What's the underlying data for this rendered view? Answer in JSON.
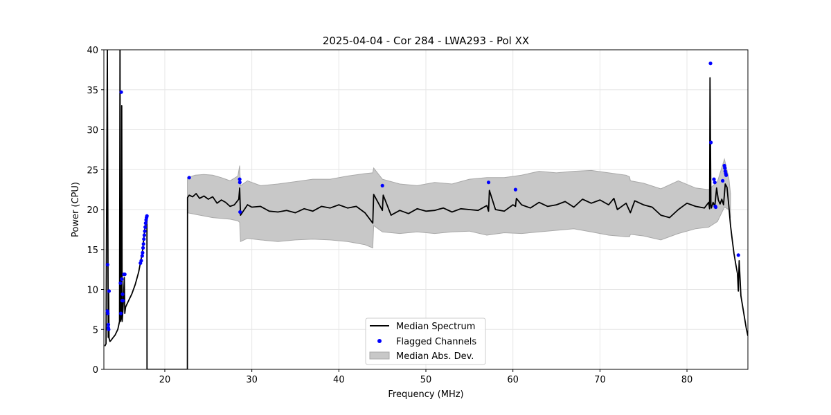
{
  "colors": {
    "median": "#000000",
    "flagged": "#0000ff",
    "mad_fill": "#c8c8c8",
    "mad_edge": "#a8a8a8",
    "grid": "#e6e6e6"
  },
  "chart_data": {
    "type": "line",
    "title": "2025-04-04 - Cor 284 - LWA293 - Pol XX",
    "xlabel": "Frequency (MHz)",
    "ylabel": "Power (CPU)",
    "xlim": [
      13,
      87
    ],
    "ylim": [
      0,
      40
    ],
    "xticks": [
      20,
      30,
      40,
      50,
      60,
      70,
      80
    ],
    "yticks": [
      0,
      5,
      10,
      15,
      20,
      25,
      30,
      35,
      40
    ],
    "grid": true,
    "legend": {
      "position": "bottom-center",
      "entries": [
        "Median Spectrum",
        "Flagged Channels",
        "Median Abs. Dev."
      ]
    },
    "series": [
      {
        "name": "Median Spectrum",
        "kind": "line",
        "x": [
          13.1,
          13.25,
          13.4,
          13.5,
          13.55,
          13.6,
          13.7,
          13.8,
          14.0,
          14.3,
          14.6,
          14.8,
          14.85,
          14.9,
          15.0,
          15.05,
          15.1,
          15.2,
          15.35,
          15.4,
          15.5,
          15.8,
          16.2,
          16.6,
          17.0,
          17.4,
          17.8,
          17.95,
          17.96,
          22.6,
          22.61,
          22.8,
          23.2,
          23.6,
          24.0,
          24.5,
          25.0,
          25.5,
          26.0,
          26.5,
          27.0,
          27.5,
          28.0,
          28.5,
          28.6,
          28.7,
          29.5,
          30.0,
          31.0,
          32.0,
          33.0,
          34.0,
          35.0,
          36.0,
          37.0,
          38.0,
          39.0,
          40.0,
          41.0,
          42.0,
          43.0,
          43.9,
          44.0,
          45.0,
          45.1,
          46.0,
          47.0,
          48.0,
          49.0,
          50.0,
          51.0,
          52.0,
          53.0,
          54.0,
          55.0,
          56.0,
          57.0,
          57.2,
          57.3,
          58.0,
          59.0,
          60.0,
          60.3,
          60.4,
          61.0,
          62.0,
          63.0,
          64.0,
          65.0,
          66.0,
          67.0,
          68.0,
          69.0,
          70.0,
          71.0,
          71.6,
          72.0,
          73.0,
          73.5,
          74.0,
          75.0,
          76.0,
          77.0,
          78.0,
          79.0,
          80.0,
          81.0,
          82.0,
          82.5,
          82.6,
          82.65,
          82.75,
          82.8,
          83.0,
          83.2,
          83.4,
          83.6,
          83.8,
          84.0,
          84.2,
          84.4,
          84.6,
          84.8,
          85.0,
          85.2,
          85.4,
          85.6,
          85.8,
          85.9,
          86.0,
          86.2,
          86.5,
          86.8,
          87.0
        ],
        "y": [
          2.9,
          3.2,
          40.0,
          4.0,
          9.5,
          3.9,
          3.5,
          3.6,
          3.9,
          4.3,
          5.0,
          6.0,
          40.0,
          6.0,
          6.5,
          33.0,
          6.0,
          7.5,
          11.5,
          7.0,
          7.8,
          8.5,
          9.4,
          10.6,
          12.2,
          14.5,
          18.5,
          18.5,
          0.0,
          0.0,
          21.5,
          21.8,
          21.6,
          22.0,
          21.4,
          21.7,
          21.3,
          21.6,
          20.8,
          21.2,
          20.9,
          20.4,
          20.6,
          21.3,
          22.7,
          19.3,
          20.6,
          20.3,
          20.4,
          19.8,
          19.7,
          19.9,
          19.6,
          20.1,
          19.8,
          20.4,
          20.2,
          20.6,
          20.2,
          20.4,
          19.6,
          18.3,
          21.9,
          19.9,
          21.8,
          19.3,
          19.9,
          19.5,
          20.1,
          19.8,
          19.9,
          20.2,
          19.7,
          20.1,
          20.0,
          19.9,
          20.5,
          19.8,
          22.4,
          20.0,
          19.8,
          20.6,
          20.4,
          21.4,
          20.6,
          20.2,
          20.9,
          20.4,
          20.6,
          21.0,
          20.3,
          21.3,
          20.8,
          21.2,
          20.6,
          21.4,
          20.0,
          20.8,
          19.6,
          21.1,
          20.6,
          20.3,
          19.3,
          19.0,
          20.0,
          20.8,
          20.4,
          20.2,
          20.9,
          20.1,
          36.5,
          20.5,
          20.2,
          20.9,
          20.4,
          22.7,
          21.2,
          20.7,
          21.3,
          20.6,
          23.2,
          22.8,
          20.5,
          18.0,
          16.2,
          14.5,
          13.2,
          12.0,
          9.8,
          13.6,
          9.2,
          7.2,
          5.2,
          4.2
        ]
      },
      {
        "name": "Flagged Channels",
        "kind": "scatter",
        "x": [
          13.4,
          13.42,
          13.45,
          13.5,
          13.52,
          13.55,
          13.6,
          14.9,
          14.95,
          15.0,
          15.05,
          15.1,
          15.15,
          15.2,
          15.3,
          15.4,
          17.2,
          17.3,
          17.4,
          17.45,
          17.5,
          17.55,
          17.6,
          17.65,
          17.7,
          17.75,
          17.8,
          17.85,
          17.9,
          17.95,
          22.8,
          28.6,
          28.62,
          28.65,
          45.0,
          57.2,
          60.3,
          82.7,
          82.75,
          83.1,
          83.2,
          83.25,
          83.3,
          84.1,
          84.3,
          84.35,
          84.4,
          84.45,
          84.5,
          85.9
        ],
        "y": [
          7.3,
          13.1,
          7.0,
          5.2,
          5.6,
          5.0,
          9.8,
          10.8,
          7.0,
          34.7,
          11.3,
          8.6,
          9.4,
          8.6,
          11.9,
          11.9,
          13.3,
          13.6,
          14.2,
          14.6,
          15.2,
          15.7,
          16.3,
          16.8,
          17.3,
          17.8,
          18.3,
          18.7,
          19.0,
          19.2,
          24.0,
          23.8,
          23.4,
          19.7,
          23.0,
          23.4,
          22.5,
          38.3,
          28.4,
          23.8,
          23.4,
          20.4,
          20.3,
          23.6,
          25.5,
          25.2,
          24.8,
          24.5,
          24.3,
          14.3
        ]
      },
      {
        "name": "Median Abs. Dev.",
        "kind": "band",
        "x": [
          22.6,
          23.5,
          24.5,
          25.5,
          26.5,
          27.5,
          28.4,
          28.6,
          28.7,
          29.5,
          31.0,
          33.0,
          35.0,
          37.0,
          39.0,
          41.0,
          43.0,
          43.9,
          44.0,
          45.0,
          47.0,
          49.0,
          51.0,
          53.0,
          55.0,
          57.0,
          59.0,
          61.0,
          63.0,
          65.0,
          67.0,
          69.0,
          71.0,
          73.0,
          73.4,
          73.5,
          75.0,
          77.0,
          79.0,
          81.0,
          82.5,
          83.5,
          84.3,
          84.8,
          85.0
        ],
        "upper": [
          24.0,
          24.3,
          24.4,
          24.3,
          24.0,
          23.6,
          24.2,
          25.5,
          23.0,
          23.6,
          23.0,
          23.2,
          23.5,
          23.8,
          23.8,
          24.2,
          24.5,
          24.6,
          25.2,
          23.8,
          23.2,
          23.0,
          23.4,
          23.2,
          23.8,
          24.0,
          24.0,
          24.3,
          24.8,
          24.6,
          24.8,
          24.9,
          24.6,
          24.3,
          24.1,
          23.6,
          23.3,
          22.6,
          23.6,
          22.7,
          22.5,
          23.5,
          26.3,
          24.0,
          22.0
        ],
        "lower": [
          19.6,
          19.4,
          19.2,
          19.0,
          18.9,
          18.8,
          18.6,
          18.4,
          16.0,
          16.4,
          16.2,
          16.0,
          16.2,
          16.3,
          16.2,
          16.0,
          15.6,
          15.2,
          18.0,
          17.2,
          17.0,
          17.2,
          17.0,
          17.2,
          17.3,
          16.8,
          17.1,
          17.0,
          17.2,
          17.4,
          17.6,
          17.2,
          16.8,
          16.6,
          16.6,
          16.9,
          16.7,
          16.2,
          17.0,
          17.6,
          17.8,
          18.5,
          20.3,
          20.0,
          19.0
        ]
      }
    ]
  }
}
